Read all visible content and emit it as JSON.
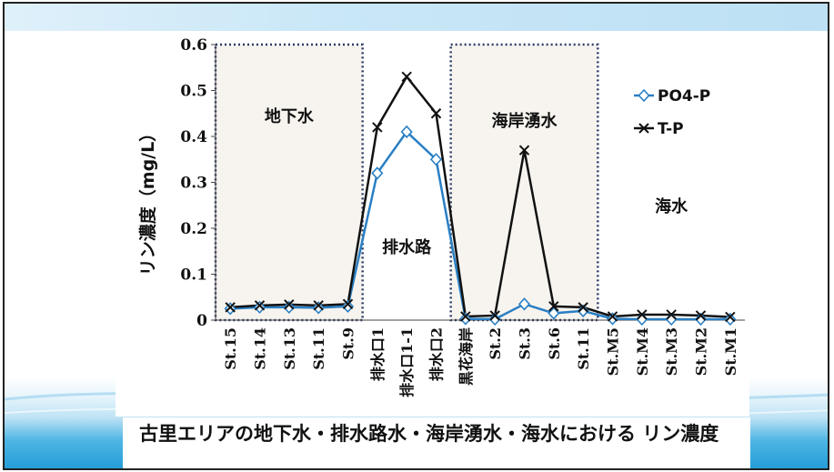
{
  "slide": {
    "caption": "古里エリアの地下水・排水路水・海岸湧水・海水における リン濃度"
  },
  "chart_data": {
    "type": "line",
    "ylabel": "リン濃度（mg/L）",
    "xlabel": "",
    "ylim": [
      0,
      0.6
    ],
    "yticks": [
      0,
      0.1,
      0.2,
      0.3,
      0.4,
      0.5,
      0.6
    ],
    "ytick_labels": [
      "0",
      "0.1",
      "0.2",
      "0.3",
      "0.4",
      "0.5",
      "0.6"
    ],
    "categories": [
      "St.15",
      "St.14",
      "St.13",
      "St.11",
      "St.9",
      "排水口1",
      "排水口1-1",
      "排水口2",
      "黒花海岸",
      "St.2",
      "St.3",
      "St.6",
      "St.11",
      "St.M5",
      "St.M4",
      "St.M3",
      "St.M2",
      "St.M1"
    ],
    "series": [
      {
        "name": "PO4-P",
        "color": "#2a7fc4",
        "marker": "diamond",
        "values": [
          0.025,
          0.028,
          0.028,
          0.027,
          0.03,
          0.32,
          0.41,
          0.35,
          0.003,
          0.002,
          0.035,
          0.015,
          0.02,
          0.003,
          0.002,
          0.002,
          0.002,
          0.002
        ]
      },
      {
        "name": "T-P",
        "color": "#111111",
        "marker": "x",
        "values": [
          0.028,
          0.032,
          0.034,
          0.032,
          0.035,
          0.42,
          0.53,
          0.45,
          0.008,
          0.01,
          0.37,
          0.03,
          0.028,
          0.008,
          0.012,
          0.012,
          0.01,
          0.007
        ]
      }
    ],
    "zones": [
      {
        "label": "地下水",
        "from": 0,
        "to": 4,
        "boxed": true
      },
      {
        "label": "排水路",
        "from": 5,
        "to": 7,
        "boxed": false
      },
      {
        "label": "海岸湧水",
        "from": 8,
        "to": 12,
        "boxed": true
      },
      {
        "label": "海水",
        "from": 13,
        "to": 17,
        "boxed": false
      }
    ],
    "legend_position": "top-right",
    "grid": false
  }
}
